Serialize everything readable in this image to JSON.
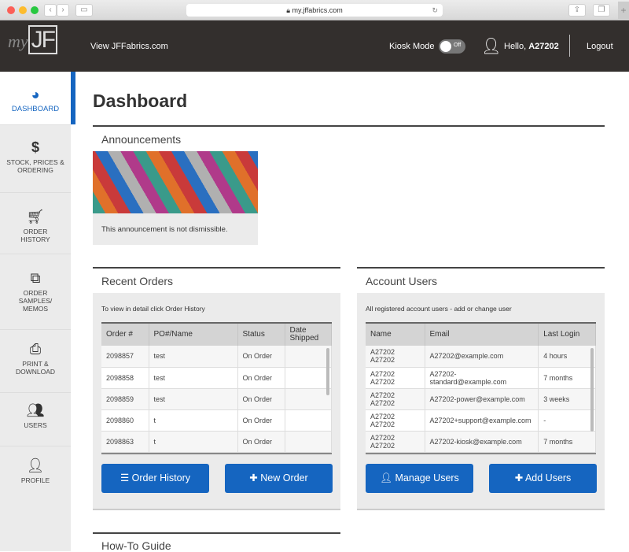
{
  "browser": {
    "url": "my.jffabrics.com"
  },
  "header": {
    "logo_text": "myJF",
    "view_link": "View JFFabrics.com",
    "kiosk_label": "Kiosk Mode",
    "kiosk_state": "Off",
    "greeting": "Hello,",
    "user": "A27202",
    "logout": "Logout"
  },
  "sidebar": {
    "items": [
      {
        "label": "DASHBOARD",
        "icon": "tachometer-icon",
        "active": true
      },
      {
        "label": "STOCK, PRICES & ORDERING",
        "icon": "dollar-icon"
      },
      {
        "label": "ORDER HISTORY",
        "icon": "cart-icon"
      },
      {
        "label": "ORDER SAMPLES/ MEMOS",
        "icon": "copy-icon"
      },
      {
        "label": "PRINT & DOWNLOAD",
        "icon": "printer-icon"
      },
      {
        "label": "USERS",
        "icon": "users-icon"
      },
      {
        "label": "PROFILE",
        "icon": "user-icon"
      }
    ]
  },
  "main": {
    "title": "Dashboard",
    "announcements": {
      "heading": "Announcements",
      "text": "This announcement is not dismissible."
    },
    "recent_orders": {
      "heading": "Recent Orders",
      "hint": "To view in detail click Order History",
      "columns": [
        "Order #",
        "PO#/Name",
        "Status",
        "Date Shipped"
      ],
      "rows": [
        [
          "2098857",
          "test",
          "On Order",
          ""
        ],
        [
          "2098858",
          "test",
          "On Order",
          ""
        ],
        [
          "2098859",
          "test",
          "On Order",
          ""
        ],
        [
          "2098860",
          "t",
          "On Order",
          ""
        ],
        [
          "2098863",
          "t",
          "On Order",
          ""
        ]
      ],
      "buttons": {
        "history": "Order History",
        "new": "New Order"
      }
    },
    "account_users": {
      "heading": "Account Users",
      "hint": "All registered account users - add or change user",
      "columns": [
        "Name",
        "Email",
        "Last Login"
      ],
      "rows": [
        [
          "A27202 A27202",
          "A27202@example.com",
          "4 hours"
        ],
        [
          "A27202 A27202",
          "A27202-standard@example.com",
          "7 months"
        ],
        [
          "A27202 A27202",
          "A27202-power@example.com",
          "3 weeks"
        ],
        [
          "A27202 A27202",
          "A27202+support@example.com",
          "-"
        ],
        [
          "A27202 A27202",
          "A27202-kiosk@example.com",
          "7 months"
        ]
      ],
      "buttons": {
        "manage": "Manage Users",
        "add": "Add Users"
      }
    },
    "howto": {
      "heading": "How-To Guide"
    }
  },
  "colors": {
    "header": "#332f2d",
    "accent": "#1565c0",
    "sidebar": "#ebebeb"
  }
}
